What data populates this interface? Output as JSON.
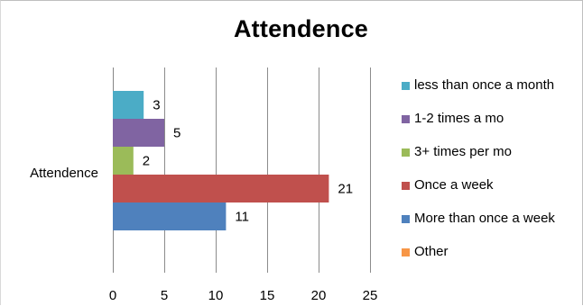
{
  "chart_data": {
    "type": "bar",
    "orientation": "horizontal",
    "title": "Attendence",
    "categories": [
      "Attendence"
    ],
    "series": [
      {
        "name": "less than once a month",
        "values": [
          3
        ],
        "color": "#4bacc6"
      },
      {
        "name": "1-2 times a mo",
        "values": [
          5
        ],
        "color": "#8064a2"
      },
      {
        "name": "3+ times per mo",
        "values": [
          2
        ],
        "color": "#9bbb59"
      },
      {
        "name": "Once a week",
        "values": [
          21
        ],
        "color": "#c0504d"
      },
      {
        "name": "More than once a week",
        "values": [
          11
        ],
        "color": "#4f81bd"
      },
      {
        "name": "Other",
        "values": [
          0
        ],
        "color": "#f79646"
      }
    ],
    "xlim": [
      0,
      25
    ],
    "xticks": [
      0,
      5,
      10,
      15,
      20,
      25
    ],
    "grid": "vertical",
    "legend_position": "right",
    "data_labels": true
  }
}
